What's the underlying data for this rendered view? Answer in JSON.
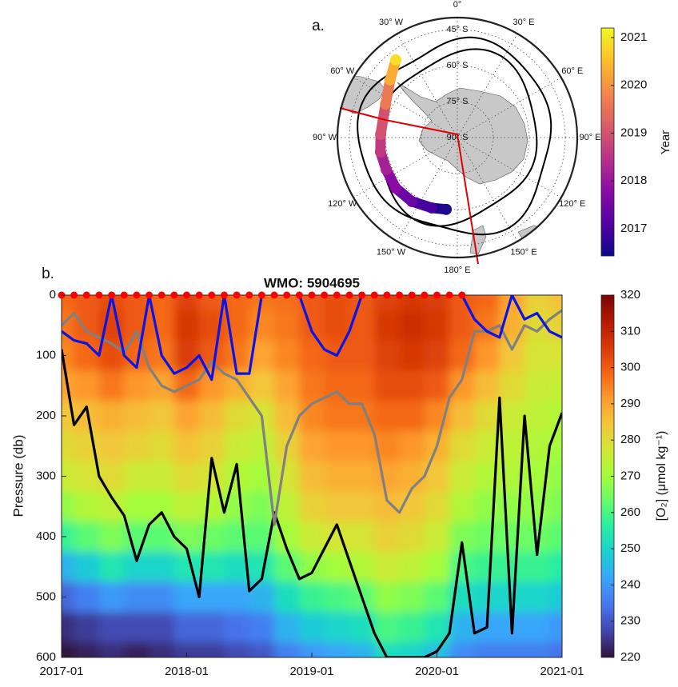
{
  "chart_data": [
    {
      "type": "polar_map",
      "panel_label": "a.",
      "latlim": [
        -90,
        -40
      ],
      "lat_ticks": [
        {
          "value": -45,
          "label": "45° S"
        },
        {
          "value": -60,
          "label": "60° S"
        },
        {
          "value": -75,
          "label": "75° S"
        },
        {
          "value": -90,
          "label": "90° S"
        }
      ],
      "lon_ticks": [
        {
          "value": 0,
          "label": "0°"
        },
        {
          "value": 30,
          "label": "30° E"
        },
        {
          "value": 60,
          "label": "60° E"
        },
        {
          "value": 90,
          "label": "90° E"
        },
        {
          "value": 120,
          "label": "120° E"
        },
        {
          "value": 150,
          "label": "150° E"
        },
        {
          "value": 180,
          "label": "180° E"
        },
        {
          "value": -150,
          "label": "150° W"
        },
        {
          "value": -120,
          "label": "120° W"
        },
        {
          "value": -90,
          "label": "90° W"
        },
        {
          "value": -60,
          "label": "60° W"
        },
        {
          "value": -30,
          "label": "30° W"
        }
      ],
      "lon": [
        -171.2,
        -160,
        -144.5,
        -129.3,
        -114.2,
        -100.6,
        -87.6,
        -65,
        -49.4,
        -38.4
      ],
      "lat": [
        -59.7,
        -58.8,
        -57.3,
        -56.8,
        -57.5,
        -57.4,
        -58,
        -57,
        -53.1,
        -48.7
      ],
      "year": [
        2016.6,
        2017.0,
        2017.4,
        2017.8,
        2018.2,
        2018.6,
        2019.0,
        2019.6,
        2020.3,
        2020.9
      ],
      "colorbar_label": "Year",
      "clim": [
        2016.43,
        2021.2
      ],
      "cticks": [
        2017,
        2018,
        2019,
        2020,
        2021
      ],
      "colormap": [
        "#0d0887",
        "#5402a3",
        "#8b0aa5",
        "#b93289",
        "#db5c68",
        "#f48849",
        "#febd2a",
        "#f0f921"
      ]
    },
    {
      "type": "contour",
      "panel_label": "b.",
      "title": "WMO: 5904695",
      "ylabel": "Pressure (db)",
      "xlim": [
        2017,
        2021
      ],
      "xticks": [
        {
          "value": 2017,
          "label": "2017-01"
        },
        {
          "value": 2018,
          "label": "2018-01"
        },
        {
          "value": 2019,
          "label": "2019-01"
        },
        {
          "value": 2020,
          "label": "2020-01"
        },
        {
          "value": 2021,
          "label": "2021-01"
        }
      ],
      "ylim": [
        0,
        600
      ],
      "y_reversed": true,
      "yticks": [
        0,
        100,
        200,
        300,
        400,
        500,
        600
      ],
      "x": [
        2017.0,
        2017.2,
        2017.4,
        2017.6,
        2017.8,
        2018.0,
        2018.2,
        2018.4,
        2018.6,
        2018.8,
        2019.0,
        2019.2,
        2019.4,
        2019.6,
        2019.8,
        2020.0,
        2020.2,
        2020.4,
        2020.6,
        2020.8,
        2021.0
      ],
      "y": [
        0,
        50,
        100,
        150,
        200,
        250,
        300,
        350,
        400,
        450,
        500,
        550,
        600
      ],
      "z": [
        [
          298,
          300,
          302,
          300,
          298,
          304,
          300,
          298,
          296,
          297,
          300,
          302,
          300,
          304,
          306,
          305,
          300,
          298,
          290,
          282,
          285
        ],
        [
          296,
          300,
          304,
          300,
          298,
          306,
          302,
          298,
          294,
          296,
          300,
          302,
          300,
          306,
          308,
          306,
          300,
          296,
          288,
          280,
          282
        ],
        [
          294,
          298,
          302,
          298,
          296,
          305,
          300,
          296,
          290,
          294,
          298,
          300,
          300,
          304,
          306,
          304,
          298,
          292,
          284,
          278,
          278
        ],
        [
          290,
          292,
          296,
          292,
          290,
          298,
          292,
          288,
          284,
          290,
          296,
          298,
          298,
          302,
          302,
          300,
          292,
          286,
          280,
          276,
          275
        ],
        [
          284,
          286,
          288,
          286,
          284,
          290,
          286,
          280,
          278,
          286,
          294,
          296,
          296,
          298,
          298,
          294,
          286,
          280,
          276,
          274,
          272
        ],
        [
          280,
          282,
          284,
          282,
          280,
          285,
          282,
          276,
          274,
          282,
          290,
          292,
          292,
          294,
          292,
          288,
          280,
          276,
          274,
          272,
          270
        ],
        [
          276,
          278,
          280,
          276,
          276,
          280,
          278,
          272,
          270,
          278,
          286,
          288,
          288,
          290,
          288,
          284,
          276,
          272,
          272,
          270,
          268
        ],
        [
          268,
          272,
          274,
          270,
          270,
          274,
          272,
          268,
          266,
          274,
          282,
          284,
          284,
          286,
          284,
          280,
          272,
          268,
          268,
          268,
          266
        ],
        [
          258,
          262,
          266,
          262,
          262,
          266,
          264,
          262,
          262,
          270,
          276,
          278,
          278,
          282,
          280,
          276,
          266,
          264,
          264,
          264,
          262
        ],
        [
          244,
          248,
          254,
          250,
          250,
          254,
          254,
          252,
          254,
          262,
          268,
          270,
          272,
          276,
          274,
          270,
          260,
          258,
          258,
          258,
          256
        ],
        [
          232,
          236,
          240,
          238,
          238,
          242,
          242,
          242,
          244,
          252,
          258,
          260,
          262,
          268,
          266,
          262,
          252,
          250,
          250,
          250,
          248
        ],
        [
          224,
          226,
          228,
          228,
          228,
          232,
          232,
          234,
          236,
          244,
          248,
          250,
          252,
          260,
          258,
          254,
          244,
          242,
          242,
          242,
          240
        ],
        [
          220,
          222,
          224,
          222,
          224,
          226,
          226,
          228,
          230,
          236,
          240,
          242,
          244,
          252,
          250,
          246,
          238,
          236,
          236,
          236,
          234
        ]
      ],
      "colorbar_label": "[O₂] (μmol kg⁻¹)",
      "clim": [
        220,
        320
      ],
      "cticks": [
        220,
        230,
        240,
        250,
        260,
        270,
        280,
        290,
        300,
        310,
        320
      ],
      "colormap": [
        "#30123b",
        "#4145ab",
        "#4675ed",
        "#39a2fc",
        "#1bcfd4",
        "#24eca6",
        "#61fc6c",
        "#a4fc3b",
        "#d1e834",
        "#f3c63a",
        "#fe9b2d",
        "#f36315",
        "#d93806",
        "#b11901",
        "#7a0403"
      ],
      "profiles": [
        2017.0,
        2017.1,
        2017.2,
        2017.3,
        2017.4,
        2017.5,
        2017.6,
        2017.7,
        2017.8,
        2017.9,
        2018.0,
        2018.1,
        2018.2,
        2018.3,
        2018.4,
        2018.5,
        2018.6,
        2018.7,
        2018.8,
        2018.9,
        2019.0,
        2019.1,
        2019.2,
        2019.3,
        2019.4,
        2019.5,
        2019.6,
        2019.7,
        2019.8,
        2019.9,
        2020.0,
        2020.1,
        2020.2
      ],
      "profile_color": "#ff0000",
      "series": [
        {
          "color": "#000000",
          "x": [
            2017.0,
            2017.1,
            2017.2,
            2017.3,
            2017.4,
            2017.5,
            2017.6,
            2017.7,
            2017.8,
            2017.9,
            2018.0,
            2018.1,
            2018.2,
            2018.3,
            2018.4,
            2018.5,
            2018.6,
            2018.7,
            2018.8,
            2018.9,
            2019.0,
            2019.1,
            2019.2,
            2019.3,
            2019.4,
            2019.5,
            2019.6,
            2019.7,
            2019.8,
            2019.9,
            2020.0,
            2020.1,
            2020.2,
            2020.3,
            2020.4,
            2020.5,
            2020.6,
            2020.7,
            2020.8,
            2020.9,
            2021.0
          ],
          "values": [
            90,
            215,
            185,
            300,
            335,
            365,
            440,
            380,
            360,
            400,
            420,
            500,
            270,
            360,
            280,
            490,
            470,
            360,
            420,
            470,
            460,
            420,
            380,
            440,
            500,
            560,
            600,
            600,
            600,
            600,
            590,
            560,
            410,
            560,
            550,
            170,
            560,
            200,
            430,
            250,
            195
          ]
        },
        {
          "color": "#808080",
          "x": [
            2017.0,
            2017.1,
            2017.2,
            2017.3,
            2017.4,
            2017.5,
            2017.6,
            2017.7,
            2017.8,
            2017.9,
            2018.0,
            2018.1,
            2018.2,
            2018.3,
            2018.4,
            2018.5,
            2018.6,
            2018.7,
            2018.8,
            2018.9,
            2019.0,
            2019.1,
            2019.2,
            2019.3,
            2019.4,
            2019.5,
            2019.6,
            2019.7,
            2019.8,
            2019.9,
            2020.0,
            2020.1,
            2020.2,
            2020.3,
            2020.4,
            2020.5,
            2020.6,
            2020.7,
            2020.8,
            2020.9,
            2021.0
          ],
          "values": [
            50,
            30,
            60,
            70,
            80,
            95,
            60,
            120,
            150,
            160,
            150,
            140,
            110,
            130,
            140,
            170,
            200,
            380,
            250,
            200,
            180,
            170,
            160,
            180,
            180,
            230,
            340,
            360,
            320,
            300,
            250,
            170,
            140,
            60,
            60,
            50,
            90,
            50,
            60,
            40,
            25
          ]
        },
        {
          "color": "#0a14e6",
          "x": [
            2017.0,
            2017.1,
            2017.2,
            2017.3,
            2017.4,
            2017.5,
            2017.6,
            2017.7,
            2017.8,
            2017.9,
            2018.0,
            2018.1,
            2018.2,
            2018.3,
            2018.4,
            2018.5,
            2018.6,
            2018.7,
            2018.8,
            2018.9,
            2019.0,
            2019.1,
            2019.2,
            2019.3,
            2019.4,
            2019.5,
            2019.6,
            2019.7,
            2019.8,
            2019.9,
            2020.0,
            2020.1,
            2020.2,
            2020.3,
            2020.4,
            2020.5,
            2020.6,
            2020.7,
            2020.8,
            2020.9,
            2021.0
          ],
          "values": [
            60,
            75,
            80,
            100,
            0,
            100,
            120,
            0,
            100,
            130,
            120,
            100,
            140,
            0,
            130,
            130,
            0,
            null,
            null,
            0,
            60,
            90,
            100,
            60,
            0,
            null,
            null,
            null,
            null,
            null,
            null,
            null,
            0,
            40,
            60,
            70,
            0,
            40,
            30,
            60,
            70
          ]
        }
      ]
    }
  ]
}
